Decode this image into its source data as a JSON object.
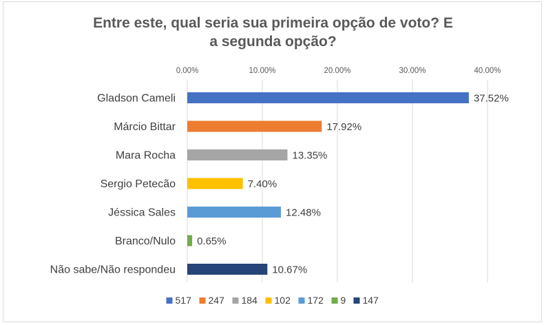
{
  "chart_data": {
    "type": "bar",
    "orientation": "horizontal",
    "title_lines": [
      "Entre este, qual seria sua primeira opção de voto? E",
      "a segunda opção?"
    ],
    "xlim": [
      0,
      40
    ],
    "x_ticks": [
      "0.00%",
      "10.00%",
      "20.00%",
      "30.00%",
      "40.00%"
    ],
    "x_tick_values": [
      0,
      10,
      20,
      30,
      40
    ],
    "x_axis_position": "top",
    "grid": true,
    "legend_position": "bottom",
    "categories": [
      "Gladson Cameli",
      "Márcio Bittar",
      "Mara Rocha",
      "Sergio Petecão",
      "Jéssica Sales",
      "Branco/Nulo",
      "Não sabe/Não respondeu"
    ],
    "values": [
      37.52,
      17.92,
      13.35,
      7.4,
      12.48,
      0.65,
      10.67
    ],
    "value_labels": [
      "37.52%",
      "17.92%",
      "13.35%",
      "7.40%",
      "12.48%",
      "0.65%",
      "10.67%"
    ],
    "colors": [
      "#4472c4",
      "#ed7d31",
      "#a5a5a5",
      "#ffc000",
      "#5b9bd5",
      "#70ad47",
      "#264478"
    ],
    "legend": [
      "517",
      "247",
      "184",
      "102",
      "172",
      "9",
      "147"
    ]
  }
}
